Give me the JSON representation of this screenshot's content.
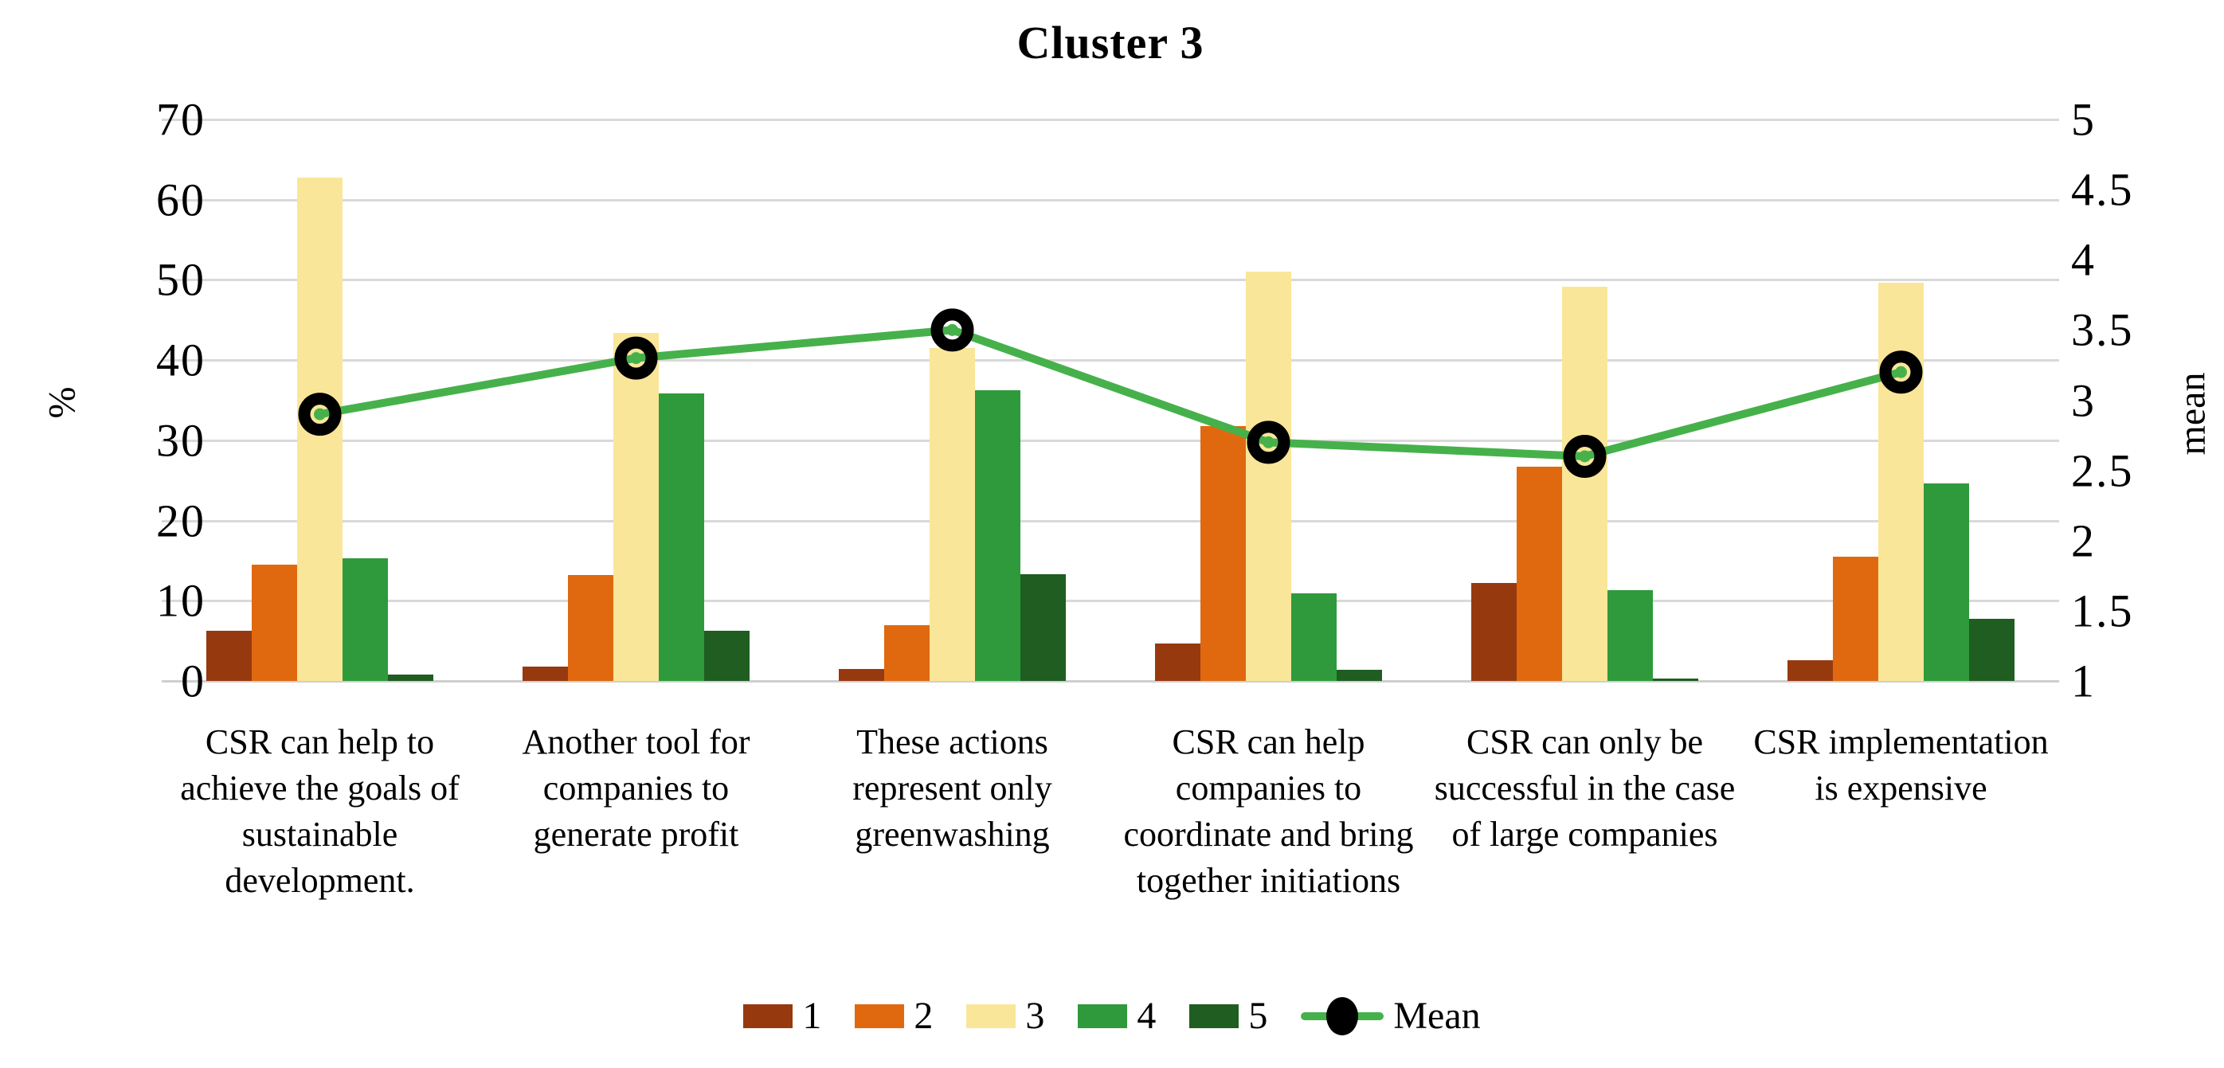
{
  "chart_data": {
    "type": "bar+line",
    "title": "Cluster 3",
    "left_axis": {
      "label": "%",
      "ticks": [
        "70",
        "60",
        "50",
        "40",
        "30",
        "20",
        "10",
        "0"
      ],
      "ylim": [
        0,
        70
      ]
    },
    "right_axis": {
      "label": "mean",
      "ticks": [
        "5",
        "4.5",
        "4",
        "3.5",
        "3",
        "2.5",
        "2",
        "1.5",
        "1"
      ],
      "ylim": [
        1,
        5
      ]
    },
    "grid": true,
    "legend_position": "bottom",
    "categories": [
      "CSR can help to achieve the goals of sustainable development.",
      "Another tool for companies to generate profit",
      "These actions represent only greenwashing",
      "CSR can help companies to coordinate and bring together initiations",
      "CSR can only be successful in the case of large companies",
      "CSR implementation is expensive"
    ],
    "series": [
      {
        "name": "1",
        "color": "#97390f",
        "values": [
          6.3,
          1.8,
          1.5,
          4.7,
          12.2,
          2.6
        ]
      },
      {
        "name": "2",
        "color": "#e0690f",
        "values": [
          14.5,
          13.2,
          7.0,
          31.8,
          26.7,
          15.5
        ]
      },
      {
        "name": "3",
        "color": "#fae699",
        "values": [
          62.8,
          43.4,
          41.5,
          51.0,
          49.2,
          49.6
        ]
      },
      {
        "name": "4",
        "color": "#2f9a3b",
        "values": [
          15.3,
          35.8,
          36.2,
          10.9,
          11.3,
          24.6
        ]
      },
      {
        "name": "5",
        "color": "#1f5d21",
        "values": [
          0.8,
          6.3,
          13.3,
          1.4,
          0.3,
          7.7
        ]
      }
    ],
    "line_series": {
      "name": "Mean",
      "color": "#46b14b",
      "marker_color": "#000000",
      "values": [
        2.9,
        3.3,
        3.5,
        2.7,
        2.6,
        3.2
      ]
    }
  }
}
